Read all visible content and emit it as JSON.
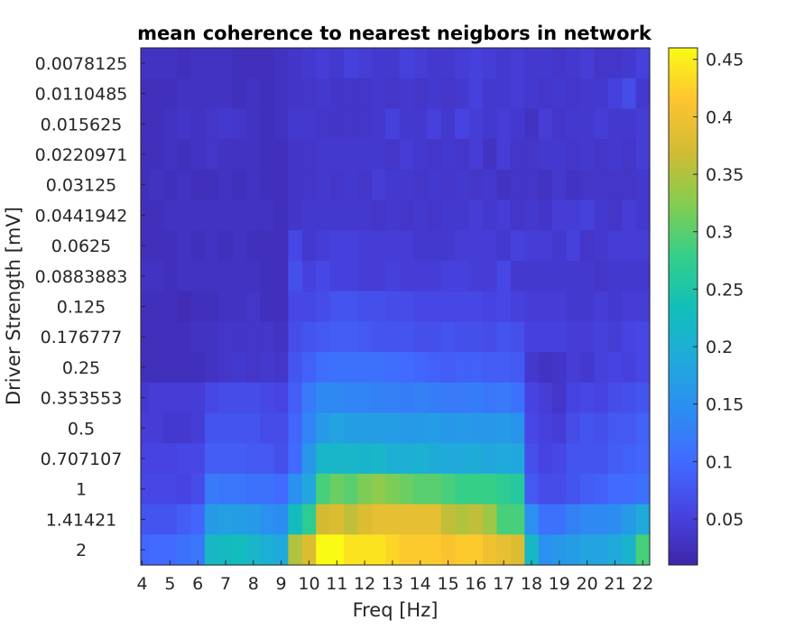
{
  "chart_data": {
    "type": "heatmap",
    "title": "mean coherence to nearest neigbors in network",
    "xlabel": "Freq [Hz]",
    "ylabel": "Driver Strength [mV]",
    "x_ticks": [
      4,
      5,
      6,
      7,
      8,
      9,
      10,
      11,
      12,
      13,
      14,
      15,
      16,
      17,
      18,
      19,
      20,
      21,
      22
    ],
    "x_range": [
      3.95,
      22.25
    ],
    "x_values": [
      4,
      4.5,
      5,
      5.5,
      6,
      6.5,
      7,
      7.5,
      8,
      8.5,
      9,
      9.5,
      10,
      10.5,
      11,
      11.5,
      12,
      12.5,
      13,
      13.5,
      14,
      14.5,
      15,
      15.5,
      16,
      16.5,
      17,
      17.5,
      18,
      18.5,
      19,
      19.5,
      20,
      20.5,
      21,
      21.5,
      22
    ],
    "y_categories": [
      "0.0078125",
      "0.0110485",
      "0.015625",
      "0.0220971",
      "0.03125",
      "0.0441942",
      "0.0625",
      "0.0883883",
      "0.125",
      "0.176777",
      "0.25",
      "0.353553",
      "0.5",
      "0.707107",
      "1",
      "1.41421",
      "2"
    ],
    "colorbar": {
      "min": 0.01,
      "max": 0.46,
      "ticks": [
        0.05,
        0.1,
        0.15,
        0.2,
        0.25,
        0.3,
        0.35,
        0.4,
        0.45
      ],
      "colormap": "parula"
    },
    "grid": false,
    "values": [
      [
        0.03,
        0.03,
        0.03,
        0.025,
        0.03,
        0.03,
        0.03,
        0.025,
        0.025,
        0.025,
        0.03,
        0.035,
        0.04,
        0.045,
        0.04,
        0.05,
        0.045,
        0.04,
        0.04,
        0.05,
        0.045,
        0.04,
        0.04,
        0.045,
        0.05,
        0.045,
        0.04,
        0.045,
        0.04,
        0.04,
        0.035,
        0.04,
        0.045,
        0.035,
        0.035,
        0.04,
        0.05
      ],
      [
        0.025,
        0.025,
        0.025,
        0.03,
        0.03,
        0.03,
        0.03,
        0.025,
        0.03,
        0.025,
        0.03,
        0.035,
        0.035,
        0.04,
        0.035,
        0.035,
        0.035,
        0.04,
        0.035,
        0.04,
        0.035,
        0.04,
        0.035,
        0.04,
        0.05,
        0.04,
        0.04,
        0.045,
        0.04,
        0.035,
        0.04,
        0.035,
        0.04,
        0.04,
        0.05,
        0.065,
        0.04
      ],
      [
        0.025,
        0.025,
        0.03,
        0.035,
        0.03,
        0.035,
        0.04,
        0.035,
        0.03,
        0.025,
        0.03,
        0.04,
        0.04,
        0.035,
        0.035,
        0.035,
        0.035,
        0.04,
        0.05,
        0.04,
        0.04,
        0.05,
        0.04,
        0.055,
        0.045,
        0.04,
        0.045,
        0.04,
        0.03,
        0.045,
        0.035,
        0.04,
        0.04,
        0.045,
        0.04,
        0.04,
        0.045
      ],
      [
        0.025,
        0.025,
        0.03,
        0.025,
        0.03,
        0.035,
        0.03,
        0.03,
        0.03,
        0.025,
        0.025,
        0.035,
        0.035,
        0.04,
        0.04,
        0.04,
        0.04,
        0.04,
        0.035,
        0.045,
        0.04,
        0.035,
        0.04,
        0.035,
        0.045,
        0.03,
        0.045,
        0.035,
        0.035,
        0.04,
        0.04,
        0.035,
        0.04,
        0.035,
        0.04,
        0.035,
        0.045
      ],
      [
        0.025,
        0.03,
        0.025,
        0.03,
        0.025,
        0.025,
        0.03,
        0.025,
        0.03,
        0.025,
        0.025,
        0.035,
        0.035,
        0.04,
        0.035,
        0.04,
        0.035,
        0.045,
        0.04,
        0.04,
        0.035,
        0.04,
        0.035,
        0.04,
        0.035,
        0.04,
        0.03,
        0.035,
        0.035,
        0.03,
        0.04,
        0.03,
        0.035,
        0.035,
        0.035,
        0.035,
        0.04
      ],
      [
        0.025,
        0.025,
        0.03,
        0.03,
        0.03,
        0.03,
        0.03,
        0.03,
        0.03,
        0.03,
        0.025,
        0.035,
        0.04,
        0.04,
        0.04,
        0.04,
        0.04,
        0.035,
        0.04,
        0.035,
        0.04,
        0.035,
        0.04,
        0.04,
        0.045,
        0.04,
        0.045,
        0.035,
        0.04,
        0.035,
        0.045,
        0.045,
        0.05,
        0.04,
        0.035,
        0.045,
        0.04
      ],
      [
        0.025,
        0.025,
        0.025,
        0.03,
        0.025,
        0.03,
        0.025,
        0.03,
        0.025,
        0.025,
        0.025,
        0.06,
        0.04,
        0.045,
        0.05,
        0.05,
        0.045,
        0.045,
        0.045,
        0.045,
        0.04,
        0.04,
        0.04,
        0.045,
        0.045,
        0.045,
        0.04,
        0.05,
        0.045,
        0.045,
        0.04,
        0.05,
        0.035,
        0.04,
        0.045,
        0.045,
        0.045
      ],
      [
        0.03,
        0.03,
        0.025,
        0.03,
        0.03,
        0.03,
        0.03,
        0.03,
        0.03,
        0.025,
        0.025,
        0.07,
        0.05,
        0.06,
        0.05,
        0.05,
        0.045,
        0.045,
        0.05,
        0.045,
        0.045,
        0.045,
        0.05,
        0.05,
        0.045,
        0.045,
        0.06,
        0.04,
        0.04,
        0.04,
        0.04,
        0.04,
        0.04,
        0.035,
        0.04,
        0.04,
        0.04
      ],
      [
        0.025,
        0.025,
        0.025,
        0.02,
        0.025,
        0.025,
        0.03,
        0.03,
        0.035,
        0.025,
        0.025,
        0.06,
        0.06,
        0.065,
        0.075,
        0.075,
        0.07,
        0.07,
        0.065,
        0.065,
        0.06,
        0.06,
        0.06,
        0.06,
        0.06,
        0.055,
        0.06,
        0.05,
        0.045,
        0.045,
        0.045,
        0.04,
        0.04,
        0.045,
        0.04,
        0.045,
        0.045
      ],
      [
        0.025,
        0.025,
        0.025,
        0.025,
        0.03,
        0.03,
        0.035,
        0.035,
        0.035,
        0.035,
        0.03,
        0.065,
        0.075,
        0.08,
        0.085,
        0.085,
        0.08,
        0.075,
        0.075,
        0.075,
        0.07,
        0.07,
        0.075,
        0.07,
        0.07,
        0.065,
        0.075,
        0.07,
        0.05,
        0.05,
        0.05,
        0.045,
        0.045,
        0.05,
        0.045,
        0.055,
        0.06
      ],
      [
        0.025,
        0.025,
        0.025,
        0.025,
        0.025,
        0.03,
        0.035,
        0.04,
        0.035,
        0.04,
        0.035,
        0.075,
        0.09,
        0.105,
        0.11,
        0.11,
        0.11,
        0.11,
        0.105,
        0.1,
        0.095,
        0.09,
        0.085,
        0.09,
        0.09,
        0.085,
        0.085,
        0.08,
        0.04,
        0.03,
        0.035,
        0.045,
        0.04,
        0.05,
        0.055,
        0.05,
        0.06
      ],
      [
        0.04,
        0.045,
        0.045,
        0.045,
        0.045,
        0.06,
        0.065,
        0.065,
        0.065,
        0.06,
        0.055,
        0.085,
        0.12,
        0.14,
        0.14,
        0.135,
        0.135,
        0.13,
        0.13,
        0.125,
        0.13,
        0.125,
        0.12,
        0.12,
        0.125,
        0.115,
        0.12,
        0.11,
        0.055,
        0.045,
        0.035,
        0.055,
        0.06,
        0.055,
        0.065,
        0.07,
        0.075
      ],
      [
        0.045,
        0.045,
        0.04,
        0.04,
        0.045,
        0.075,
        0.075,
        0.075,
        0.075,
        0.065,
        0.065,
        0.095,
        0.135,
        0.165,
        0.18,
        0.17,
        0.17,
        0.17,
        0.17,
        0.165,
        0.165,
        0.17,
        0.16,
        0.165,
        0.16,
        0.16,
        0.165,
        0.155,
        0.06,
        0.05,
        0.045,
        0.065,
        0.075,
        0.07,
        0.08,
        0.08,
        0.09
      ],
      [
        0.055,
        0.055,
        0.055,
        0.06,
        0.06,
        0.085,
        0.085,
        0.085,
        0.08,
        0.08,
        0.07,
        0.1,
        0.16,
        0.215,
        0.215,
        0.215,
        0.21,
        0.215,
        0.2,
        0.2,
        0.205,
        0.195,
        0.19,
        0.19,
        0.195,
        0.185,
        0.19,
        0.185,
        0.07,
        0.055,
        0.06,
        0.075,
        0.075,
        0.075,
        0.085,
        0.09,
        0.095
      ],
      [
        0.06,
        0.06,
        0.06,
        0.055,
        0.065,
        0.12,
        0.115,
        0.115,
        0.11,
        0.11,
        0.1,
        0.15,
        0.185,
        0.29,
        0.31,
        0.3,
        0.32,
        0.33,
        0.32,
        0.31,
        0.3,
        0.3,
        0.29,
        0.28,
        0.28,
        0.28,
        0.27,
        0.26,
        0.08,
        0.065,
        0.065,
        0.075,
        0.085,
        0.09,
        0.1,
        0.1,
        0.11
      ],
      [
        0.075,
        0.075,
        0.075,
        0.085,
        0.095,
        0.165,
        0.175,
        0.17,
        0.165,
        0.15,
        0.145,
        0.23,
        0.27,
        0.37,
        0.38,
        0.36,
        0.38,
        0.39,
        0.39,
        0.39,
        0.39,
        0.39,
        0.36,
        0.35,
        0.36,
        0.34,
        0.29,
        0.29,
        0.15,
        0.11,
        0.11,
        0.13,
        0.14,
        0.14,
        0.145,
        0.165,
        0.19
      ],
      [
        0.095,
        0.1,
        0.1,
        0.11,
        0.115,
        0.22,
        0.225,
        0.23,
        0.215,
        0.2,
        0.19,
        0.35,
        0.38,
        0.46,
        0.46,
        0.44,
        0.44,
        0.44,
        0.43,
        0.42,
        0.42,
        0.42,
        0.41,
        0.42,
        0.42,
        0.4,
        0.39,
        0.38,
        0.22,
        0.15,
        0.16,
        0.17,
        0.18,
        0.18,
        0.19,
        0.21,
        0.29
      ]
    ]
  }
}
